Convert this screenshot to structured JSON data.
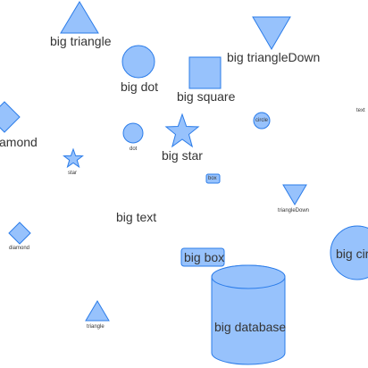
{
  "colors": {
    "fill": "#97c2fc",
    "stroke": "#2b7ce9",
    "text": "#343434",
    "background": "#ffffff"
  },
  "nodes": {
    "big_triangle": {
      "shape": "triangle",
      "label": "big triangle"
    },
    "big_triangle_down": {
      "shape": "triangleDown",
      "label": "big triangleDown"
    },
    "big_dot": {
      "shape": "dot",
      "label": "big dot"
    },
    "big_square": {
      "shape": "square",
      "label": "big square"
    },
    "big_diamond": {
      "shape": "diamond",
      "label": "amond"
    },
    "text_small": {
      "shape": "text",
      "label": "text"
    },
    "circle_small": {
      "shape": "circle",
      "label": "circle"
    },
    "dot_small": {
      "shape": "dot",
      "label": "dot"
    },
    "big_star": {
      "shape": "star",
      "label": "big star"
    },
    "star_small": {
      "shape": "star",
      "label": "star"
    },
    "box_small": {
      "shape": "box",
      "label": "box"
    },
    "triangle_down_small": {
      "shape": "triangleDown",
      "label": "triangleDown"
    },
    "big_text": {
      "shape": "text",
      "label": "big text"
    },
    "diamond_small": {
      "shape": "diamond",
      "label": "diamond"
    },
    "big_box": {
      "shape": "box",
      "label": "big box"
    },
    "big_circle": {
      "shape": "circle",
      "label": "big cir"
    },
    "triangle_small": {
      "shape": "triangle",
      "label": "triangle"
    },
    "big_database": {
      "shape": "database",
      "label": "big database"
    }
  }
}
